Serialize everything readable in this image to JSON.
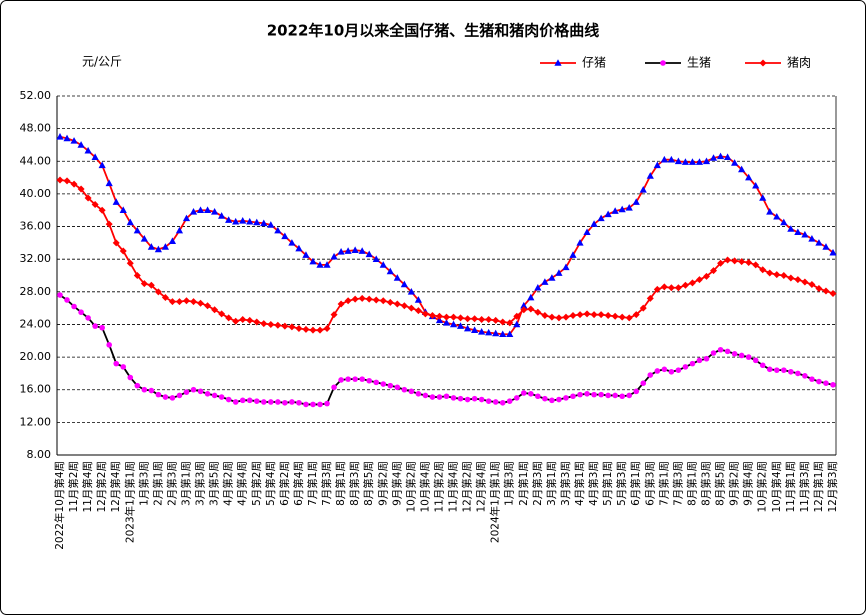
{
  "chart_data": {
    "type": "line",
    "title": "2022年10月以来全国仔猪、生猪和猪肉价格曲线",
    "y_axis_label": "元/公斤",
    "ylim": [
      8,
      52
    ],
    "yticks": [
      {
        "value": 8,
        "label": "8.00"
      },
      {
        "value": 12,
        "label": "12.00"
      },
      {
        "value": 16,
        "label": "16.00"
      },
      {
        "value": 20,
        "label": "20.00"
      },
      {
        "value": 24,
        "label": "24.00"
      },
      {
        "value": 28,
        "label": "28.00"
      },
      {
        "value": 32,
        "label": "32.00"
      },
      {
        "value": 36,
        "label": "36.00"
      },
      {
        "value": 40,
        "label": "40.00"
      },
      {
        "value": 44,
        "label": "44.00"
      },
      {
        "value": 48,
        "label": "48.00"
      },
      {
        "value": 52,
        "label": "52.00"
      }
    ],
    "grid": true,
    "categories": [
      "2022年10月第4周",
      null,
      "11月第2周",
      null,
      "11月第4周",
      null,
      "12月第2周",
      null,
      "12月第4周",
      null,
      "2023年1月第1周",
      null,
      "1月第3周",
      null,
      "2月第1周",
      null,
      "2月第3周",
      null,
      "3月第1周",
      null,
      "3月第3周",
      null,
      "3月第5周",
      null,
      "4月第2周",
      null,
      "4月第4周",
      null,
      "5月第2周",
      null,
      "5月第4周",
      null,
      "6月第2周",
      null,
      "6月第4周",
      null,
      "7月第1周",
      null,
      "7月第3周",
      null,
      "8月第1周",
      null,
      "8月第3周",
      null,
      "8月第5周",
      null,
      "9月第2周",
      null,
      "9月第4周",
      null,
      "10月第2周",
      null,
      "10月第4周",
      null,
      "11月第2周",
      null,
      "11月第4周",
      null,
      "12月第2周",
      null,
      "12月第4周",
      null,
      "2024年1月第1周",
      null,
      "1月第3周",
      null,
      "2月第1周",
      null,
      "2月第3周",
      null,
      "3月第1周",
      null,
      "3月第3周",
      null,
      "4月第1周",
      null,
      "4月第3周",
      null,
      "5月第1周",
      null,
      "5月第3周",
      null,
      "6月第1周",
      null,
      "6月第3周",
      null,
      "7月第1周",
      null,
      "7月第3周",
      null,
      "8月第1周",
      null,
      "8月第3周",
      null,
      "8月第5周",
      null,
      "9月第2周",
      null,
      "9月第4周",
      null,
      "10月第2周",
      null,
      "10月第4周",
      null,
      "11月第1周",
      null,
      "11月第3周",
      null,
      "12月第1周",
      null,
      "12月第3周"
    ],
    "series": [
      {
        "name": "仔猪",
        "color": "#ff0000",
        "marker_color": "#0000ff",
        "marker": "triangle",
        "values": [
          47.0,
          46.8,
          46.5,
          46.0,
          45.3,
          44.5,
          43.5,
          41.3,
          39.0,
          38.0,
          36.5,
          35.5,
          34.5,
          33.5,
          33.2,
          33.5,
          34.2,
          35.5,
          37.0,
          37.8,
          38.0,
          38.0,
          37.8,
          37.3,
          36.8,
          36.6,
          36.7,
          36.6,
          36.5,
          36.4,
          36.2,
          35.5,
          34.8,
          34.0,
          33.3,
          32.5,
          31.7,
          31.3,
          31.3,
          32.3,
          32.9,
          33.0,
          33.1,
          33.0,
          32.6,
          32.0,
          31.3,
          30.5,
          29.7,
          28.9,
          28.0,
          27.0,
          25.5,
          25.0,
          24.5,
          24.2,
          24.0,
          23.8,
          23.5,
          23.3,
          23.1,
          23.0,
          22.9,
          22.8,
          22.8,
          24.0,
          26.3,
          27.3,
          28.5,
          29.2,
          29.7,
          30.3,
          31.0,
          32.5,
          34.0,
          35.3,
          36.3,
          37.0,
          37.5,
          37.9,
          38.1,
          38.3,
          39.0,
          40.5,
          42.2,
          43.5,
          44.2,
          44.2,
          44.0,
          43.9,
          43.9,
          43.9,
          44.0,
          44.4,
          44.6,
          44.5,
          43.8,
          43.0,
          42.0,
          41.0,
          39.5,
          37.8,
          37.2,
          36.5,
          35.7,
          35.3,
          35.0,
          34.5,
          34.0,
          33.5,
          32.8
        ]
      },
      {
        "name": "生猪",
        "color": "#000000",
        "marker_color": "#ff00ff",
        "marker": "circle",
        "values": [
          27.6,
          27.0,
          26.2,
          25.5,
          24.8,
          23.8,
          23.6,
          21.5,
          19.2,
          18.8,
          17.5,
          16.5,
          16.0,
          15.9,
          15.4,
          15.1,
          15.0,
          15.3,
          15.7,
          16.0,
          15.8,
          15.5,
          15.3,
          15.1,
          14.8,
          14.5,
          14.7,
          14.7,
          14.6,
          14.5,
          14.5,
          14.5,
          14.4,
          14.5,
          14.4,
          14.2,
          14.2,
          14.2,
          14.3,
          16.3,
          17.2,
          17.3,
          17.3,
          17.3,
          17.1,
          16.9,
          16.7,
          16.5,
          16.3,
          16.0,
          15.8,
          15.5,
          15.3,
          15.1,
          15.1,
          15.2,
          15.0,
          14.9,
          14.8,
          14.9,
          14.8,
          14.6,
          14.5,
          14.4,
          14.6,
          15.0,
          15.6,
          15.5,
          15.2,
          14.9,
          14.7,
          14.8,
          15.0,
          15.2,
          15.4,
          15.5,
          15.4,
          15.4,
          15.3,
          15.3,
          15.2,
          15.3,
          15.8,
          16.8,
          17.8,
          18.3,
          18.5,
          18.2,
          18.4,
          18.8,
          19.2,
          19.6,
          19.8,
          20.5,
          20.9,
          20.7,
          20.4,
          20.2,
          20.0,
          19.6,
          19.0,
          18.5,
          18.4,
          18.4,
          18.2,
          18.0,
          17.7,
          17.3,
          17.0,
          16.8,
          16.6
        ]
      },
      {
        "name": "猪肉",
        "color": "#ff0000",
        "marker_color": "#ff0000",
        "marker": "diamond",
        "values": [
          41.7,
          41.6,
          41.2,
          40.6,
          39.5,
          38.7,
          38.0,
          36.3,
          34.0,
          33.0,
          31.5,
          30.0,
          29.0,
          28.8,
          28.0,
          27.3,
          26.8,
          26.8,
          26.9,
          26.8,
          26.6,
          26.3,
          25.8,
          25.3,
          24.8,
          24.4,
          24.6,
          24.5,
          24.3,
          24.1,
          24.0,
          23.9,
          23.8,
          23.7,
          23.5,
          23.4,
          23.3,
          23.3,
          23.5,
          25.2,
          26.5,
          26.9,
          27.1,
          27.2,
          27.1,
          27.0,
          26.9,
          26.7,
          26.5,
          26.3,
          26.0,
          25.7,
          25.3,
          25.1,
          25.0,
          24.9,
          24.9,
          24.8,
          24.7,
          24.7,
          24.6,
          24.6,
          24.5,
          24.3,
          24.2,
          25.0,
          25.8,
          25.9,
          25.5,
          25.1,
          24.9,
          24.8,
          24.9,
          25.1,
          25.2,
          25.3,
          25.2,
          25.2,
          25.1,
          25.0,
          24.9,
          24.8,
          25.2,
          26.0,
          27.2,
          28.3,
          28.6,
          28.5,
          28.5,
          28.8,
          29.1,
          29.5,
          29.9,
          30.6,
          31.5,
          31.9,
          31.8,
          31.7,
          31.6,
          31.3,
          30.7,
          30.3,
          30.1,
          30.0,
          29.7,
          29.5,
          29.2,
          28.9,
          28.4,
          28.1,
          27.8
        ]
      }
    ]
  }
}
